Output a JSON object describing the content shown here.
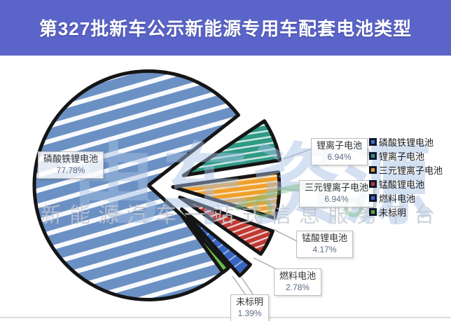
{
  "title": "第327批新车公示新能源专用车配套电池类型",
  "chart_data": {
    "type": "pie",
    "title": "第327批新车公示新能源专用车配套电池类型",
    "style": "sketch-exploded",
    "legend_position": "right",
    "unit": "%",
    "series": [
      {
        "label": "磷酸铁锂电池",
        "value": 77.78,
        "pct_label": "77.78%",
        "color": "#6b90c4",
        "legend_color": "#4472c4"
      },
      {
        "label": "锂离子电池",
        "value": 6.94,
        "pct_label": "6.94%",
        "color": "#2f9a85",
        "legend_color": "#37967b"
      },
      {
        "label": "三元锂离子电池",
        "value": 6.94,
        "pct_label": "6.94%",
        "color": "#f0a02c",
        "legend_color": "#e8982f"
      },
      {
        "label": "锰酸锂电池",
        "value": 4.17,
        "pct_label": "4.17%",
        "color": "#bf3a33",
        "legend_color": "#c0392b"
      },
      {
        "label": "燃料电池",
        "value": 2.78,
        "pct_label": "2.78%",
        "color": "#3766c2",
        "legend_color": "#3c64c8"
      },
      {
        "label": "未标明",
        "value": 1.39,
        "pct_label": "1.39%",
        "color": "#69bd49",
        "legend_color": "#5aab3c"
      }
    ]
  },
  "watermark": {
    "logo_text": "电车资源",
    "subtitle": "新能源汽车一站式信息服务平台"
  },
  "colors": {
    "banner": "#5a64c9",
    "outline": "#151515"
  }
}
